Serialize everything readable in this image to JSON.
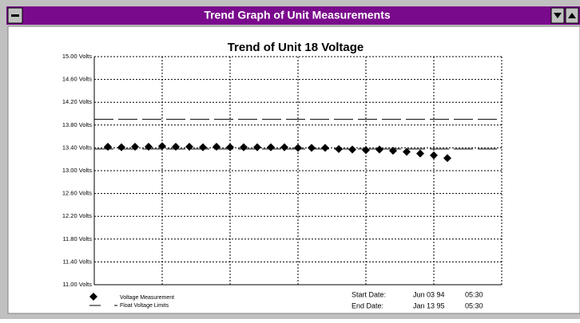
{
  "window": {
    "title": "Trend Graph of Unit Measurements"
  },
  "chart_data": {
    "type": "scatter",
    "title": "Trend of Unit 18 Voltage",
    "x": [
      1,
      2,
      3,
      4,
      5,
      6,
      7,
      8,
      9,
      10,
      11,
      12,
      13,
      14,
      15,
      16,
      17,
      18,
      19,
      20,
      21,
      22,
      23,
      24,
      25,
      26
    ],
    "series": [
      {
        "name": "Voltage Measurement",
        "color": "#000000",
        "values": [
          13.42,
          13.41,
          13.42,
          13.42,
          13.43,
          13.42,
          13.42,
          13.41,
          13.42,
          13.41,
          13.41,
          13.41,
          13.41,
          13.41,
          13.4,
          13.4,
          13.4,
          13.38,
          13.37,
          13.36,
          13.37,
          13.35,
          13.33,
          13.3,
          13.27,
          13.22
        ]
      }
    ],
    "limits": {
      "name": "Float Voltage Limits",
      "color": "#000000",
      "values": [
        13.9,
        13.38
      ]
    },
    "xlim": [
      0,
      30
    ],
    "xticks": [
      5,
      10,
      15,
      20,
      25,
      30
    ],
    "ylim": [
      11.0,
      15.0
    ],
    "yticks": [
      {
        "value": 11.0,
        "label": "11.00 Volts"
      },
      {
        "value": 11.4,
        "label": "11.40 Volts"
      },
      {
        "value": 11.8,
        "label": "11.80 Volts"
      },
      {
        "value": 12.2,
        "label": "12.20 Volts"
      },
      {
        "value": 12.6,
        "label": "12.60 Volts"
      },
      {
        "value": 13.0,
        "label": "13.00 Volts"
      },
      {
        "value": 13.4,
        "label": "13.40 Volts"
      },
      {
        "value": 13.8,
        "label": "13.80 Volts"
      },
      {
        "value": 14.2,
        "label": "14.20 Volts"
      },
      {
        "value": 14.6,
        "label": "14.60 Volts"
      },
      {
        "value": 15.0,
        "label": "15.00 Volts"
      }
    ],
    "grid": true,
    "start": {
      "label": "Start Date:",
      "date": "Jun 03 94",
      "time": "05:30"
    },
    "end": {
      "label": "End Date:",
      "date": "Jan 13 95",
      "time": "05:30"
    }
  }
}
